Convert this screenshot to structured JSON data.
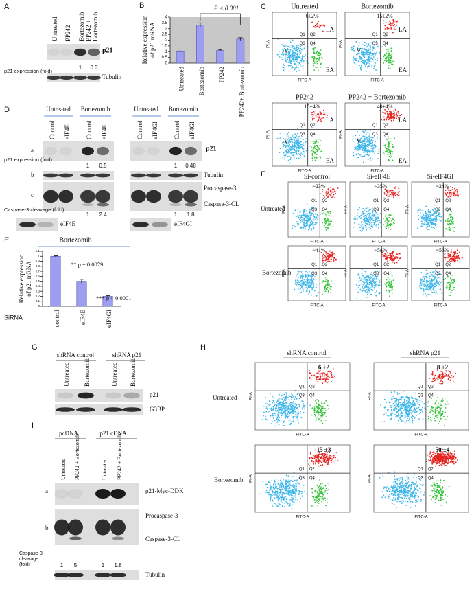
{
  "panels": {
    "A": {
      "label": "A",
      "lanes": [
        [
          "Untreated"
        ],
        [
          "PP242"
        ],
        [
          "Bortezomib"
        ],
        [
          "PP242 +",
          "Bortezomib"
        ]
      ],
      "blots": [
        "p21",
        "Tubulin"
      ],
      "quant_label": "p21 expression (fold)",
      "quant": [
        1,
        0.3
      ]
    },
    "B": {
      "label": "B",
      "ylabel": [
        "Relative expression",
        "of p21 mRNA"
      ],
      "categories": [
        "Untreated",
        "Bortezomib",
        "PP242",
        "PP242+ Bortezomib"
      ],
      "values": [
        1.0,
        3.3,
        1.1,
        2.1
      ],
      "errors": [
        0.05,
        0.2,
        0.08,
        0.12
      ],
      "ylim": [
        0,
        4
      ],
      "yticks": [
        0,
        0.5,
        1,
        1.5,
        2,
        2.5,
        3,
        3.5,
        4
      ],
      "color": "#9d9df2",
      "annotation": "P < 0.001."
    },
    "C": {
      "label": "C",
      "plots": [
        {
          "title": "Untreated",
          "percent": "6±2%"
        },
        {
          "title": "Bortezomib",
          "percent": "15±2%"
        },
        {
          "title": "PP242",
          "percent": "15±4%"
        },
        {
          "title": "PP242 + Bortezomib",
          "percent": "40±4%"
        }
      ],
      "quadrants": [
        "Q1",
        "Q2",
        "Q3",
        "Q4"
      ],
      "regions": [
        "LA",
        "EA",
        "V"
      ],
      "x_axis": "FITC-A",
      "y_axis": "PI-A"
    },
    "D": {
      "label": "D",
      "groups": [
        "Untreated",
        "Bortezomib"
      ],
      "lanes_left": [
        "Control",
        "eIF4E",
        "Control",
        "eIF4E"
      ],
      "lanes_right": [
        "Control",
        "eIF4GI",
        "Control",
        "eIF4GI"
      ],
      "rows": [
        "a",
        "b",
        "c"
      ],
      "blots": [
        "p21",
        "Tubulin",
        "Procaspase-3",
        "Caspase-3-CL"
      ],
      "p21_label": "p21 expression (fold)",
      "p21_left": [
        1,
        0.5
      ],
      "p21_right": [
        1,
        0.48
      ],
      "casp_label": "Caspase-3 cleavage (fold)",
      "casp_left": [
        1,
        2.4
      ],
      "casp_right": [
        1,
        1.8
      ],
      "knockdown": [
        "eIF4E",
        "eIF4GI"
      ]
    },
    "E": {
      "label": "E",
      "title": "Bortezomib",
      "ylabel": [
        "Relative  expression",
        "of p21 mRNA"
      ],
      "categories": [
        "control",
        "eIF4E",
        "eIF4GI"
      ],
      "values": [
        1.0,
        0.5,
        0.2
      ],
      "errors": [
        0.01,
        0.04,
        0.015
      ],
      "ylim": [
        0,
        1.1
      ],
      "yticks": [
        0,
        0.1,
        0.2,
        0.3,
        0.4,
        0.5,
        0.6,
        0.7,
        0.8,
        0.9,
        1,
        1.1
      ],
      "color": "#9d9df2",
      "annotations": [
        "** p = 0.0079",
        "*** p < 0.0001"
      ],
      "xlabel": "SiRNA"
    },
    "F": {
      "label": "F",
      "columns": [
        "Si-control",
        "Si-eIF4E",
        "Si-eIF4GI"
      ],
      "rows": [
        "Untreated",
        "Bortezomib"
      ],
      "percents": [
        [
          "~23%",
          "~35%",
          "~24%"
        ],
        [
          "~41%",
          "~58%",
          "~56%"
        ]
      ]
    },
    "G": {
      "label": "G",
      "groups": [
        "shRNA control",
        "shRNA  p21"
      ],
      "lanes": [
        "Untreated",
        "Bortezomib",
        "Untreated",
        "Bortezomib"
      ],
      "blots": [
        "p21",
        "G3BP"
      ]
    },
    "H": {
      "label": "H",
      "columns": [
        "shRNA  control",
        "shRNA  p21"
      ],
      "rows": [
        "Untreated",
        "Bortezomib"
      ],
      "percents": [
        [
          "6 ±2",
          "8 ±2"
        ],
        [
          "15 ±3",
          "50 ±4"
        ]
      ]
    },
    "I": {
      "label": "I",
      "groups": [
        "pcDNA",
        "p21 cDNA"
      ],
      "lanes": [
        "Untreated",
        "PP242 + Bortezomib",
        "Untreated",
        "PP242 + Bortezomib"
      ],
      "rows": [
        "a",
        "b"
      ],
      "blots": [
        "p21-Myc-DDK",
        "Procaspase-3",
        "Caspase-3-CL",
        "Tubulin"
      ],
      "quant_label": [
        "Caspase-3",
        "cleavage",
        "(fold)"
      ],
      "quant": [
        1,
        5,
        1,
        1.8
      ]
    }
  }
}
